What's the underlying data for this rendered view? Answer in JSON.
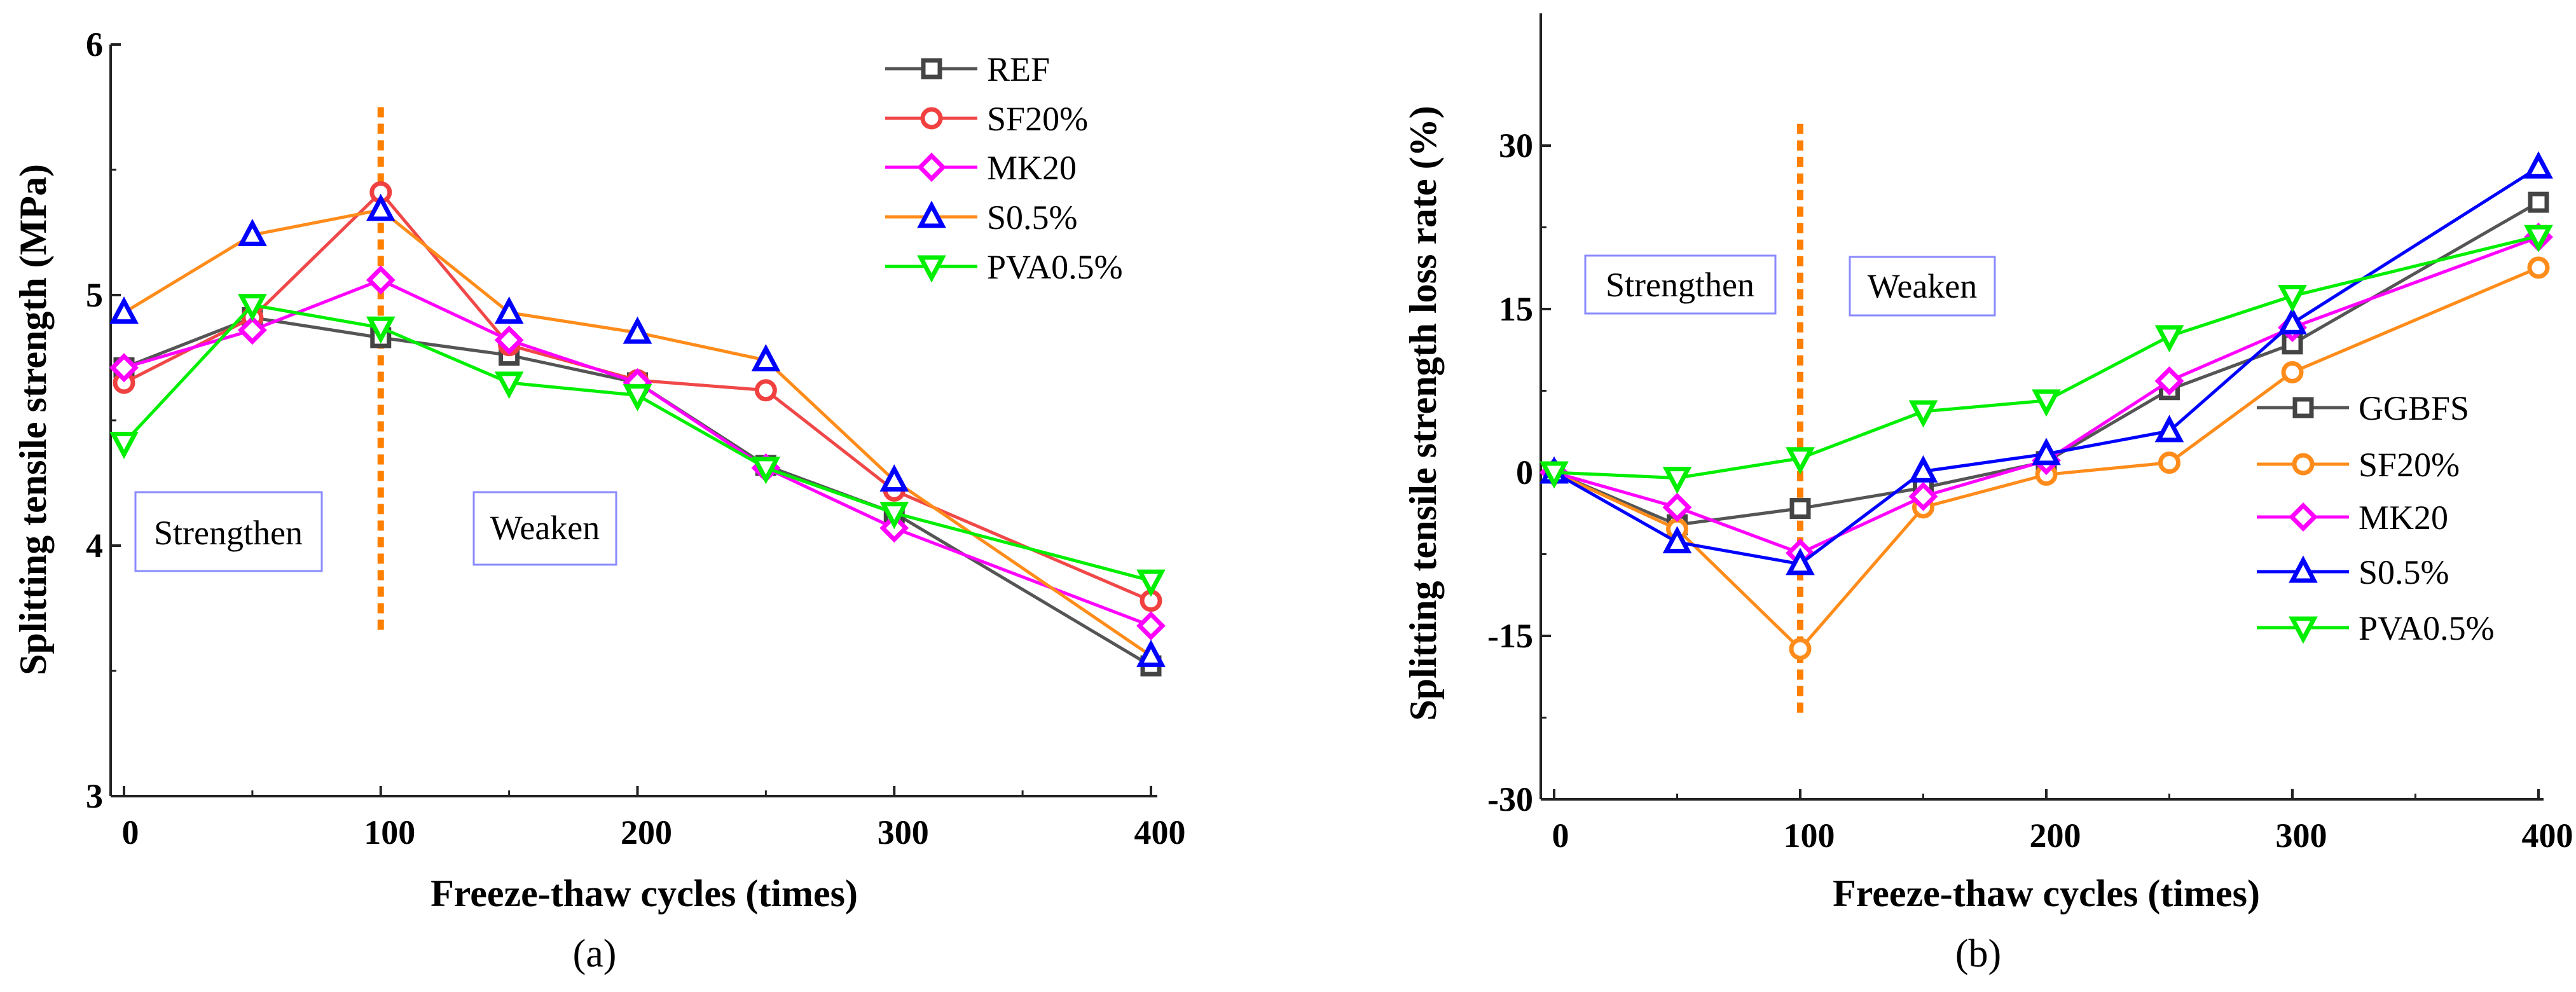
{
  "chart_data": [
    {
      "type": "line",
      "caption": "(a)",
      "xlabel": "Freeze-thaw cycles (times)",
      "ylabel": "Splitting tensile strength (MPa)",
      "xlim": [
        0,
        400
      ],
      "ylim": [
        3,
        6
      ],
      "xticks": [
        0,
        100,
        200,
        300,
        400
      ],
      "yticks": [
        3,
        4,
        5,
        6
      ],
      "grid": false,
      "legend_position": "top-right",
      "x": [
        0,
        50,
        100,
        150,
        200,
        250,
        300,
        400
      ],
      "divider_x": 100,
      "divider_color": "#ff7f00",
      "annotations": [
        "Strengthen",
        "Weaken"
      ],
      "series": [
        {
          "name": "REF",
          "marker": "square",
          "line_color": "#555555",
          "marker_color": "#444444",
          "values": [
            4.71,
            4.91,
            4.83,
            4.76,
            4.65,
            4.32,
            4.13,
            3.52
          ]
        },
        {
          "name": "SF20%",
          "marker": "circle",
          "line_color": "#f04848",
          "marker_color": "#f04040",
          "values": [
            4.65,
            4.91,
            5.41,
            4.8,
            4.66,
            4.62,
            4.22,
            3.78
          ]
        },
        {
          "name": "MK20",
          "marker": "diamond",
          "line_color": "#ff00ff",
          "marker_color": "#ff00ff",
          "values": [
            4.71,
            4.86,
            5.06,
            4.82,
            4.65,
            4.31,
            4.07,
            3.68
          ]
        },
        {
          "name": "S0.5%",
          "marker": "triangle-up",
          "line_color": "#ff8c1a",
          "marker_color": "#0000ff",
          "values": [
            4.93,
            5.24,
            5.34,
            4.93,
            4.85,
            4.74,
            4.26,
            3.56
          ]
        },
        {
          "name": "PVA0.5%",
          "marker": "triangle-down",
          "line_color": "#00ee00",
          "marker_color": "#00ee00",
          "values": [
            4.41,
            4.96,
            4.87,
            4.65,
            4.6,
            4.31,
            4.13,
            3.86
          ]
        }
      ]
    },
    {
      "type": "line",
      "caption": "(b)",
      "xlabel": "Freeze-thaw cycles (times)",
      "ylabel": "Splitting tensile strength loss rate (%)",
      "xlim": [
        0,
        400
      ],
      "ylim": [
        -30,
        37
      ],
      "xticks": [
        0,
        100,
        200,
        300,
        400
      ],
      "yticks": [
        -30,
        -15,
        0,
        15,
        30
      ],
      "grid": false,
      "legend_position": "bottom-right",
      "x": [
        0,
        50,
        100,
        150,
        200,
        250,
        300,
        400
      ],
      "divider_x": 100,
      "divider_color": "#ff7f00",
      "annotations": [
        "Strengthen",
        "Weaken"
      ],
      "series": [
        {
          "name": "GGBFS",
          "marker": "square",
          "line_color": "#555555",
          "marker_color": "#444444",
          "values": [
            0,
            -4.8,
            -3.3,
            -1.4,
            1.0,
            7.6,
            11.8,
            24.8
          ]
        },
        {
          "name": "SF20%",
          "marker": "circle",
          "line_color": "#ff8c1a",
          "marker_color": "#ff8c1a",
          "values": [
            0,
            -5.2,
            -16.2,
            -3.2,
            -0.2,
            0.9,
            9.2,
            18.8
          ]
        },
        {
          "name": "MK20",
          "marker": "diamond",
          "line_color": "#ff00ff",
          "marker_color": "#ff00ff",
          "values": [
            0,
            -3.2,
            -7.4,
            -2.2,
            1.1,
            8.4,
            13.3,
            21.6
          ]
        },
        {
          "name": "S0.5%",
          "marker": "triangle-up",
          "line_color": "#0000ff",
          "marker_color": "#0000ff",
          "values": [
            0,
            -6.4,
            -8.4,
            0.1,
            1.7,
            3.8,
            13.7,
            28.0
          ]
        },
        {
          "name": "PVA0.5%",
          "marker": "triangle-down",
          "line_color": "#00ee00",
          "marker_color": "#00ee00",
          "values": [
            0,
            -0.5,
            1.3,
            5.6,
            6.6,
            12.5,
            16.2,
            21.7
          ]
        }
      ]
    }
  ]
}
